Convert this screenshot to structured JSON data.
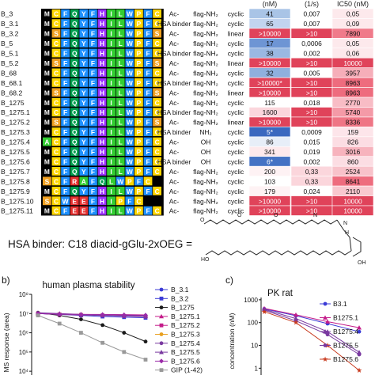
{
  "table": {
    "header": {
      "col_nm": "(nM)",
      "col_rate": "(1/s)",
      "col_ic50": "IC50 (nM)"
    },
    "palette": {
      "M": "#1a1a1a",
      "C": "#1a1a1a",
      "F": "#1a1a1a",
      "Y": "#1a1a1a",
      "H": "#1a1a1a",
      "I": "#1a1a1a",
      "L": "#1a1a1a",
      "W": "#1a1a1a",
      "P": "#1a1a1a",
      "S": "#1a1a1a",
      "A": "#1a1a1a",
      "R": "#1a1a1a",
      "E": "#1a1a1a",
      "Q": "#1a1a1a",
      "D": "#1a1a1a"
    },
    "residue_colors": {
      "M": "#000000",
      "C": "#ffd700",
      "F": "#1e90ff",
      "Y": "#1e90ff",
      "H": "#9b30ff",
      "I": "#32cd32",
      "L": "#32cd32",
      "W": "#1e90ff",
      "P": "#ffd700",
      "S": "#f0a020",
      "A": "#32cd32",
      "R": "#e53030",
      "E": "#e53030",
      "Q": "#00a050",
      "D": "#e53030",
      "K": "#e53030"
    },
    "rows": [
      {
        "name": "B_3",
        "seq": "MCFQYFHILWPFC",
        "n": "Ac-",
        "c": "flag-NH₂",
        "topo": "cyclic",
        "v1": "41",
        "v2": "0,007",
        "v3": "0,05",
        "c1": "#a9c4e6",
        "c2": "#ffffff",
        "c3": "#fde9ec"
      },
      {
        "name": "B_3.1",
        "seq": "MCFQYFHILWPFC",
        "n": "HSA binder",
        "c": "flag-NH₂",
        "topo": "cyclic",
        "v1": "65",
        "v2": "0,007",
        "v3": "0,09",
        "c1": "#c2d4ef",
        "c2": "#ffffff",
        "c3": "#fde9ec"
      },
      {
        "name": "B_3.2",
        "seq": "MSFQYFHILWPFS",
        "n": "Ac-",
        "c": "flag-NH₂",
        "topo": "linear",
        "v1": ">10000",
        "v2": ">10",
        "v3": "7890",
        "c1": "#e0435a",
        "c2": "#e0435a",
        "c3": "#f07a8a"
      },
      {
        "name": "B_5",
        "seq": "MCFQYFHILWPFC",
        "n": "Ac-",
        "c": "flag-NH₂",
        "topo": "cyclic",
        "v1": "17",
        "v2": "0,0006",
        "v3": "0,05",
        "c1": "#6e95d4",
        "c2": "#ffffff",
        "c3": "#fde9ec"
      },
      {
        "name": "B_5.1",
        "seq": "MCFQYFHILWPFC",
        "n": "HSA binder",
        "c": "flag-NH₂",
        "topo": "cyclic",
        "v1": "38",
        "v2": "0,002",
        "v3": "0,06",
        "c1": "#9ab8e2",
        "c2": "#ffffff",
        "c3": "#fde9ec"
      },
      {
        "name": "B_5.2",
        "seq": "MSFQYFHILWPFS",
        "n": "Ac-",
        "c": "flag-NH₂",
        "topo": "linear",
        "v1": ">10000",
        "v2": ">10",
        "v3": "10000",
        "c1": "#e0435a",
        "c2": "#e0435a",
        "c3": "#e0435a"
      },
      {
        "name": "B_68",
        "seq": "MCFQYFHILWPFC",
        "n": "Ac-",
        "c": "flag-NH₂",
        "topo": "cyclic",
        "v1": "32",
        "v2": "0,005",
        "v3": "3957",
        "c1": "#8fb0de",
        "c2": "#ffffff",
        "c3": "#f6aeb9"
      },
      {
        "name": "B_68.1",
        "seq": "MCFQYFHILWPFC",
        "n": "HSA binder",
        "c": "flag-NH₂",
        "topo": "cyclic",
        "v1": ">10000*",
        "v2": ">10",
        "v3": "8963",
        "c1": "#e0435a",
        "c2": "#e0435a",
        "c3": "#ee6c7e"
      },
      {
        "name": "B_68.2",
        "seq": "MSFQYFHILWPFS",
        "n": "Ac-",
        "c": "flag-NH₂",
        "topo": "linear",
        "v1": ">10000",
        "v2": ">10",
        "v3": "8963",
        "c1": "#e0435a",
        "c2": "#e0435a",
        "c3": "#ee6c7e"
      },
      {
        "name": "B_1275",
        "seq": "MCFQYFHILWPFC",
        "n": "Ac-",
        "c": "flag-NH₂",
        "topo": "cyclic",
        "v1": "115",
        "v2": "0,018",
        "v3": "2770",
        "c1": "#ffffff",
        "c2": "#ffffff",
        "c3": "#f8bcc5"
      },
      {
        "name": "B_1275.1",
        "seq": "MCFQYFHILWPFC",
        "n": "HSA binder",
        "c": "flag-NH₂",
        "topo": "cyclic",
        "v1": "1600",
        "v2": ">10",
        "v3": "5740",
        "c1": "#fbd6dc",
        "c2": "#e0435a",
        "c3": "#f49aa7"
      },
      {
        "name": "B_1275.2",
        "seq": "MSFQYFHILWPFS",
        "n": "Ac-",
        "c": "flag-NH₂",
        "topo": "linear",
        "v1": ">10000",
        "v2": ">10",
        "v3": "8336",
        "c1": "#e0435a",
        "c2": "#e0435a",
        "c3": "#ef7585"
      },
      {
        "name": "B_1275.3",
        "seq": "MCFQYFHILWPFC",
        "n": "HSA binder",
        "c": "NH₂",
        "topo": "cyclic",
        "v1": "5*",
        "v2": "0,0009",
        "v3": "159",
        "c1": "#3a68bf",
        "c2": "#ffffff",
        "c3": "#fde5ea"
      },
      {
        "name": "B_1275.4",
        "seq": "ACFQYFHILWPFC",
        "n": "Ac-",
        "c": "OH",
        "topo": "cyclic",
        "v1": "86",
        "v2": "0,015",
        "v3": "826",
        "c1": "#e7eef8",
        "c2": "#ffffff",
        "c3": "#fcdde3"
      },
      {
        "name": "B_1275.5",
        "seq": "MCFQYFHILWPFC",
        "n": "Ac-",
        "c": "OH",
        "topo": "cyclic",
        "v1": "341",
        "v2": "0,019",
        "v3": "3016",
        "c1": "#fde9ec",
        "c2": "#ffffff",
        "c3": "#f7b3bd"
      },
      {
        "name": "B_1275.6",
        "seq": "MCFQYFHILWPFC",
        "n": "HSA binder",
        "c": "OH",
        "topo": "cyclic",
        "v1": "6*",
        "v2": "0,002",
        "v3": "860",
        "c1": "#4472c4",
        "c2": "#ffffff",
        "c3": "#fcdde3"
      },
      {
        "name": "B_1275.7",
        "seq": "MCFQYFHILWPFC",
        "n": "Ac-",
        "c": "flag-NH₂",
        "topo": "cyclic",
        "v1": "200",
        "v2": "0,33",
        "v3": "2524",
        "c1": "#fef2f4",
        "c2": "#fbd6dc",
        "c3": "#f8c2ca"
      },
      {
        "name": "B_1275.8",
        "seq": "SCFRAFQLWPFC",
        "n": "Ac-",
        "c": "flag-NH₂",
        "topo": "cyclic",
        "v1": "103",
        "v2": "0,33",
        "v3": "8641",
        "c1": "#ffffff",
        "c2": "#fbd6dc",
        "c3": "#ee6c7e"
      },
      {
        "name": "B_1275.9",
        "seq": "MCFQYFHILWPFC",
        "n": "Ac-",
        "c": "flag-NH₂",
        "topo": "cyclic",
        "v1": "179",
        "v2": "0,024",
        "v3": "2110",
        "c1": "#fef2f4",
        "c2": "#ffffff",
        "c3": "#f9c8cf"
      },
      {
        "name": "B_1275.10",
        "seq": "SCWEEFHIPFC",
        "n": "Ac-",
        "c": "flag-NH₂",
        "topo": "cyclic",
        "v1": ">10000",
        "v2": ">10",
        "v3": "10000",
        "c1": "#e0435a",
        "c2": "#e0435a",
        "c3": "#e0435a"
      },
      {
        "name": "B_1275.11",
        "seq": "MCFEEFHILWPFC",
        "n": "Ac-",
        "c": "flag-NH₂",
        "topo": "cyclic",
        "v1": ">10000",
        "v2": ">10",
        "v3": "10000",
        "c1": "#e0435a",
        "c2": "#e0435a",
        "c3": "#e0435a"
      }
    ]
  },
  "hsa_formula": "HSA binder: C18 diacid-gGlu-2xOEG =",
  "panel_b": {
    "label": "b)",
    "chart_data": {
      "type": "line",
      "title": "human plasma stability",
      "ylabel": "MS response (area)",
      "ylog": true,
      "y_ticks": [
        "10⁸",
        "10⁷",
        "10⁶",
        "10⁵",
        "10⁴"
      ],
      "series": [
        {
          "name": "B_3.1",
          "color": "#3b3bd6",
          "marker": "circle",
          "values": [
            10000000.0,
            9000000.0,
            9000000.0,
            8500000.0,
            8000000.0,
            8000000.0
          ]
        },
        {
          "name": "B_3.2",
          "color": "#3b3bd6",
          "marker": "square",
          "values": [
            10000000.0,
            9000000.0,
            8000000.0,
            7000000.0,
            6500000.0,
            6000000.0
          ]
        },
        {
          "name": "B_1275",
          "color": "#1a1a1a",
          "marker": "circle",
          "values": [
            11000000.0,
            8000000.0,
            5000000.0,
            2500000.0,
            1000000.0,
            350000.0
          ]
        },
        {
          "name": "B_1275.1",
          "color": "#c41c8a",
          "marker": "triangle",
          "values": [
            10000000.0,
            9500000.0,
            9000000.0,
            9000000.0,
            8800000.0,
            8500000.0
          ]
        },
        {
          "name": "B_1275.2",
          "color": "#c41c8a",
          "marker": "square",
          "values": [
            10000000.0,
            9000000.0,
            8500000.0,
            8000000.0,
            7500000.0,
            7000000.0
          ]
        },
        {
          "name": "B_1275.3",
          "color": "#e8a020",
          "marker": "circle",
          "values": [
            10000000.0,
            9500000.0,
            9000000.0,
            8500000.0,
            8000000.0,
            7500000.0
          ]
        },
        {
          "name": "B_1275.4",
          "color": "#7a3aa0",
          "marker": "circle",
          "values": [
            10000000.0,
            9000000.0,
            8500000.0,
            8000000.0,
            7500000.0,
            7000000.0
          ]
        },
        {
          "name": "B_1275.5",
          "color": "#7a3aa0",
          "marker": "triangle",
          "values": [
            11000000.0,
            10000000.0,
            9000000.0,
            8500000.0,
            8000000.0,
            7500000.0
          ]
        },
        {
          "name": "B_1275.6",
          "color": "#9a2aa8",
          "marker": "diamond",
          "values": [
            10000000.0,
            9500000.0,
            9000000.0,
            8800000.0,
            8500000.0,
            8000000.0
          ]
        },
        {
          "name": "GIP (1-42)",
          "color": "#999999",
          "marker": "square",
          "values": [
            8000000.0,
            3000000.0,
            1000000.0,
            300000.0,
            100000.0,
            40000.0
          ]
        }
      ]
    }
  },
  "panel_c": {
    "label": "c)",
    "chart_data": {
      "type": "line",
      "title": "PK rat",
      "ylabel": "concentration (nM)",
      "ylog": true,
      "y_ticks": [
        "1000",
        "100",
        "10",
        "1"
      ],
      "series": [
        {
          "name": "B3.1",
          "color": "#3b3bd6",
          "marker": "circle",
          "values": [
            400,
            200,
            90,
            40
          ]
        },
        {
          "name": "B1275.1",
          "color": "#c41c8a",
          "marker": "triangle",
          "values": [
            420,
            220,
            110,
            60
          ]
        },
        {
          "name": "B1275.4",
          "color": "#7a3aa0",
          "marker": "triangle",
          "values": [
            380,
            150,
            40,
            5
          ]
        },
        {
          "name": "B1275.5",
          "color": "#7a3aa0",
          "marker": "circle",
          "values": [
            350,
            120,
            30,
            4
          ]
        },
        {
          "name": "B1275.6",
          "color": "#c83a1e",
          "marker": "star",
          "values": [
            300,
            100,
            10,
            0.8
          ]
        }
      ]
    }
  }
}
